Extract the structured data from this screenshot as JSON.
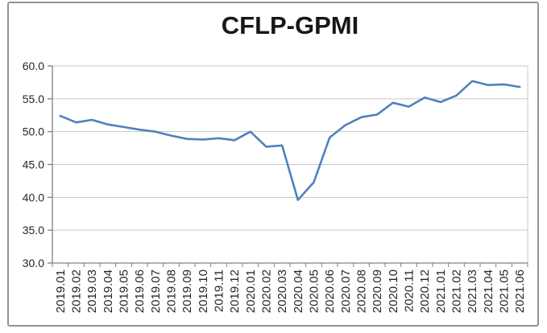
{
  "frame": {
    "border_color": "#949494",
    "background": "#ffffff"
  },
  "chart_data": {
    "type": "line",
    "title": "CFLP-GPMI",
    "xlabel": "",
    "ylabel": "",
    "categories": [
      "2019.01",
      "2019.02",
      "2019.03",
      "2019.04",
      "2019.05",
      "2019.06",
      "2019.07",
      "2019.08",
      "2019.09",
      "2019.10",
      "2019.11",
      "2019.12",
      "2020.01",
      "2020.02",
      "2020.03",
      "2020.04",
      "2020.05",
      "2020.06",
      "2020.07",
      "2020.08",
      "2020.09",
      "2020.10",
      "2020.11",
      "2020.12",
      "2021.01",
      "2021.02",
      "2021.03",
      "2021.04",
      "2021.05",
      "2021.06"
    ],
    "series": [
      {
        "name": "CFLP-GPMI",
        "color": "#4f81bd",
        "values": [
          52.4,
          51.4,
          51.8,
          51.1,
          50.7,
          50.3,
          50.0,
          49.4,
          48.9,
          48.8,
          49.0,
          48.7,
          50.0,
          47.7,
          47.9,
          39.6,
          42.3,
          49.1,
          51.0,
          52.2,
          52.6,
          54.4,
          53.8,
          55.2,
          54.5,
          55.5,
          57.7,
          57.1,
          57.2,
          56.8
        ]
      }
    ],
    "ylim": [
      30,
      60
    ],
    "yticks": [
      {
        "value": 60,
        "label": "60.0"
      },
      {
        "value": 55,
        "label": "55.0"
      },
      {
        "value": 50,
        "label": "50.0"
      },
      {
        "value": 45,
        "label": "45.0"
      },
      {
        "value": 40,
        "label": "40.0"
      },
      {
        "value": 35,
        "label": "35.0"
      },
      {
        "value": 30,
        "label": "30.0"
      }
    ],
    "grid": "horizontal",
    "legend": "none",
    "axis_color": "#808080",
    "gridline_color": "#c8c8c8",
    "plot_border_color": "#c8c8c8",
    "tick_label_color": "#262626"
  }
}
